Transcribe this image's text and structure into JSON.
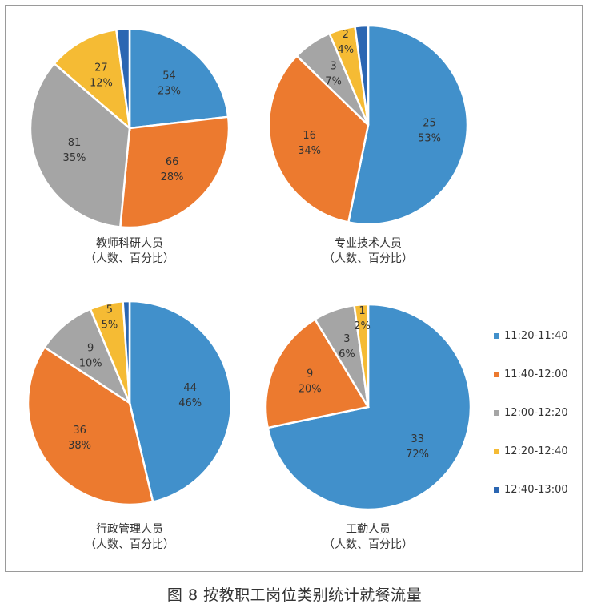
{
  "caption": "图 8  按教职工岗位类别统计就餐流量",
  "legend": [
    {
      "label": "11:20-11:40",
      "color": "#4190cb"
    },
    {
      "label": "11:40-12:00",
      "color": "#ec7a2f"
    },
    {
      "label": "12:00-12:20",
      "color": "#a5a5a5"
    },
    {
      "label": "12:20-12:40",
      "color": "#f5bb34"
    },
    {
      "label": "12:40-13:00",
      "color": "#2b66b2"
    }
  ],
  "chart_data": [
    {
      "type": "pie",
      "title": "教师科研人员",
      "subtitle": "（人数、百分比）",
      "categories": [
        "11:20-11:40",
        "11:40-12:00",
        "12:00-12:20",
        "12:20-12:40",
        "12:40-13:00"
      ],
      "values": [
        54,
        66,
        81,
        27,
        5
      ],
      "value_labels": [
        "54",
        "66",
        "81",
        "27",
        ""
      ],
      "percent_labels": [
        "23%",
        "28%",
        "35%",
        "12%",
        ""
      ]
    },
    {
      "type": "pie",
      "title": "专业技术人员",
      "subtitle": "（人数、百分比）",
      "categories": [
        "11:20-11:40",
        "11:40-12:00",
        "12:00-12:20",
        "12:20-12:40",
        "12:40-13:00"
      ],
      "values": [
        25,
        16,
        3,
        2,
        1
      ],
      "value_labels": [
        "25",
        "16",
        "3",
        "2",
        ""
      ],
      "percent_labels": [
        "53%",
        "34%",
        "7%",
        "4%",
        ""
      ]
    },
    {
      "type": "pie",
      "title": "行政管理人员",
      "subtitle": "（人数、百分比）",
      "categories": [
        "11:20-11:40",
        "11:40-12:00",
        "12:00-12:20",
        "12:20-12:40",
        "12:40-13:00"
      ],
      "values": [
        44,
        36,
        9,
        5,
        1
      ],
      "value_labels": [
        "44",
        "36",
        "9",
        "5",
        ""
      ],
      "percent_labels": [
        "46%",
        "38%",
        "10%",
        "5%",
        ""
      ]
    },
    {
      "type": "pie",
      "title": "工勤人员",
      "subtitle": "（人数、百分比）",
      "categories": [
        "11:20-11:40",
        "11:40-12:00",
        "12:00-12:20",
        "12:20-12:40",
        "12:40-13:00"
      ],
      "values": [
        33,
        9,
        3,
        1,
        0
      ],
      "value_labels": [
        "33",
        "9",
        "3",
        "1",
        ""
      ],
      "percent_labels": [
        "72%",
        "20%",
        "6%",
        "2%",
        ""
      ]
    }
  ]
}
